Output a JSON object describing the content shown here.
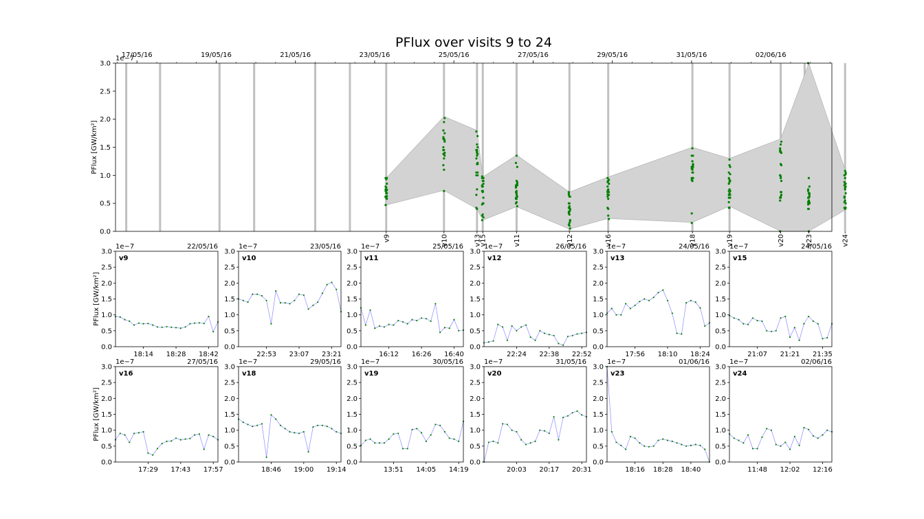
{
  "title": "PFlux over visits 9 to 24",
  "colors": {
    "points": "#008000",
    "line": "#8a8aff",
    "band": "#d3d3d3",
    "band_edge": "#a9a9a9",
    "visit_bar": "#c0c0c0"
  },
  "chart_data": [
    {
      "type": "scatter",
      "panel": "overview",
      "title": "PFlux over visits 9 to 24",
      "ylabel": "PFlux [GW/km²]",
      "y_scale_label": "1e−7",
      "ylim": [
        0,
        3.0
      ],
      "yticks": [
        "0.0",
        "0.5",
        "1.0",
        "1.5",
        "2.0",
        "2.5",
        "3.0"
      ],
      "xlim": [
        "2016-05-16T11:00",
        "2016-06-03T13:00"
      ],
      "xticks": [
        "17/05/16",
        "19/05/16",
        "21/05/16",
        "23/05/16",
        "25/05/16",
        "27/05/16",
        "29/05/16",
        "31/05/16",
        "02/06/16"
      ],
      "visit_bars": [
        "2016-05-16T17:30",
        "2016-05-17T14:00",
        "2016-05-19T02:00",
        "2016-05-19T23:00",
        "2016-05-21T12:00",
        "2016-05-22T09:00",
        "2016-05-23T07:00",
        "2016-05-24T18:00",
        "2016-05-25T14:00",
        "2016-05-25T17:30",
        "2016-05-26T14:00",
        "2016-05-27T22:00",
        "2016-05-28T21:30",
        "2016-05-31T00:30",
        "2016-05-31T23:00",
        "2016-06-02T06:00",
        "2016-06-02T20:30",
        "2016-06-02T23:00",
        "2016-06-03T21:00"
      ],
      "band_upper": [
        {
          "x": "2016-05-23T07:00",
          "y": 0.95
        },
        {
          "x": "2016-05-24T18:00",
          "y": 2.05
        },
        {
          "x": "2016-05-25T14:00",
          "y": 1.8
        },
        {
          "x": "2016-05-25T17:30",
          "y": 0.97
        },
        {
          "x": "2016-05-26T14:00",
          "y": 1.36
        },
        {
          "x": "2016-05-27T22:00",
          "y": 0.7
        },
        {
          "x": "2016-05-28T21:30",
          "y": 0.97
        },
        {
          "x": "2016-05-31T00:30",
          "y": 1.5
        },
        {
          "x": "2016-05-31T23:00",
          "y": 1.3
        },
        {
          "x": "2016-06-02T06:00",
          "y": 1.65
        },
        {
          "x": "2016-06-02T23:00",
          "y": 3.0
        },
        {
          "x": "2016-06-03T21:00",
          "y": 1.1
        }
      ],
      "band_lower": [
        {
          "x": "2016-05-23T07:00",
          "y": 0.47
        },
        {
          "x": "2016-05-24T18:00",
          "y": 0.73
        },
        {
          "x": "2016-05-25T14:00",
          "y": 0.4
        },
        {
          "x": "2016-05-25T17:30",
          "y": 0.2
        },
        {
          "x": "2016-05-26T14:00",
          "y": 0.44
        },
        {
          "x": "2016-05-27T22:00",
          "y": 0.04
        },
        {
          "x": "2016-05-28T21:30",
          "y": 0.23
        },
        {
          "x": "2016-05-31T00:30",
          "y": 0.16
        },
        {
          "x": "2016-05-31T23:00",
          "y": 0.45
        },
        {
          "x": "2016-06-02T06:00",
          "y": 0.0
        },
        {
          "x": "2016-06-02T23:00",
          "y": 0.0
        },
        {
          "x": "2016-06-03T21:00",
          "y": 0.38
        }
      ],
      "visit_labels": [
        {
          "label": "v9",
          "x": "2016-05-23T07:00"
        },
        {
          "label": "v10",
          "x": "2016-05-24T18:00"
        },
        {
          "label": "v13",
          "x": "2016-05-25T14:00"
        },
        {
          "label": "v15",
          "x": "2016-05-25T17:30"
        },
        {
          "label": "v11",
          "x": "2016-05-26T14:00"
        },
        {
          "label": "v12",
          "x": "2016-05-27T22:00"
        },
        {
          "label": "v16",
          "x": "2016-05-28T21:30"
        },
        {
          "label": "v18",
          "x": "2016-05-31T00:30"
        },
        {
          "label": "v19",
          "x": "2016-05-31T23:00"
        },
        {
          "label": "v20",
          "x": "2016-06-02T06:00"
        },
        {
          "label": "v23",
          "x": "2016-06-02T23:00"
        },
        {
          "label": "v24",
          "x": "2016-06-03T21:00"
        }
      ]
    },
    {
      "type": "line",
      "label": "v9",
      "date": "22/05/16",
      "x": [
        "18:02",
        "18:04",
        "18:06",
        "18:08",
        "18:10",
        "18:12",
        "18:14",
        "18:16",
        "18:18",
        "18:20",
        "18:22",
        "18:24",
        "18:26",
        "18:28",
        "18:30",
        "18:32",
        "18:34",
        "18:36",
        "18:38",
        "18:40",
        "18:42",
        "18:44",
        "18:46"
      ],
      "y": [
        0.95,
        0.93,
        0.85,
        0.8,
        0.68,
        0.74,
        0.72,
        0.73,
        0.68,
        0.62,
        0.61,
        0.63,
        0.61,
        0.6,
        0.58,
        0.62,
        0.72,
        0.74,
        0.75,
        0.73,
        0.95,
        0.47,
        0.78
      ],
      "ylim": [
        0,
        3.0
      ],
      "xticks": [
        "18:14",
        "18:28",
        "18:42"
      ],
      "ylabel": "PFlux [GW/km²]"
    },
    {
      "type": "line",
      "label": "v10",
      "date": "23/05/16",
      "x": [
        "22:41",
        "22:43",
        "22:45",
        "22:47",
        "22:49",
        "22:51",
        "22:53",
        "22:55",
        "22:57",
        "22:59",
        "23:01",
        "23:03",
        "23:05",
        "23:07",
        "23:09",
        "23:11",
        "23:13",
        "23:15",
        "23:17",
        "23:19",
        "23:21",
        "23:23",
        "23:25"
      ],
      "y": [
        1.5,
        1.45,
        1.4,
        1.65,
        1.65,
        1.6,
        1.45,
        0.72,
        1.75,
        1.38,
        1.38,
        1.35,
        1.45,
        1.65,
        1.62,
        1.18,
        1.3,
        1.4,
        1.68,
        1.95,
        2.02,
        1.8,
        1.1
      ],
      "ylim": [
        0,
        3.0
      ],
      "xticks": [
        "22:53",
        "23:07",
        "23:21"
      ],
      "ylabel": ""
    },
    {
      "type": "line",
      "label": "v11",
      "date": "25/05/16",
      "x": [
        "16:00",
        "16:02",
        "16:04",
        "16:06",
        "16:08",
        "16:10",
        "16:12",
        "16:14",
        "16:16",
        "16:18",
        "16:20",
        "16:22",
        "16:24",
        "16:26",
        "16:28",
        "16:30",
        "16:32",
        "16:34",
        "16:36",
        "16:38",
        "16:40",
        "16:42",
        "16:44"
      ],
      "y": [
        1.22,
        0.68,
        1.15,
        0.58,
        0.65,
        0.62,
        0.7,
        0.68,
        0.82,
        0.78,
        0.72,
        0.85,
        0.82,
        0.9,
        0.88,
        0.8,
        1.35,
        0.45,
        0.6,
        0.58,
        0.85,
        0.5,
        0.52
      ],
      "ylim": [
        0,
        3.0
      ],
      "xticks": [
        "16:12",
        "16:26",
        "16:40"
      ],
      "ylabel": ""
    },
    {
      "type": "line",
      "label": "v12",
      "date": "26/05/16",
      "x": [
        "22:10",
        "22:12",
        "22:14",
        "22:16",
        "22:18",
        "22:20",
        "22:22",
        "22:24",
        "22:26",
        "22:28",
        "22:30",
        "22:32",
        "22:34",
        "22:36",
        "22:38",
        "22:40",
        "22:42",
        "22:44",
        "22:46",
        "22:48",
        "22:50",
        "22:52",
        "22:54"
      ],
      "y": [
        0.12,
        0.15,
        0.18,
        0.7,
        0.62,
        0.2,
        0.65,
        0.5,
        0.62,
        0.68,
        0.3,
        0.2,
        0.5,
        0.42,
        0.38,
        0.35,
        0.1,
        0.05,
        0.32,
        0.35,
        0.4,
        0.42,
        0.45
      ],
      "ylim": [
        0,
        3.0
      ],
      "xticks": [
        "22:24",
        "22:38",
        "22:52"
      ],
      "ylabel": ""
    },
    {
      "type": "line",
      "label": "v13",
      "date": "24/05/16",
      "x": [
        "17:44",
        "17:46",
        "17:48",
        "17:50",
        "17:52",
        "17:54",
        "17:56",
        "17:58",
        "18:00",
        "18:02",
        "18:04",
        "18:06",
        "18:08",
        "18:10",
        "18:12",
        "18:14",
        "18:16",
        "18:18",
        "18:20",
        "18:22",
        "18:24",
        "18:26",
        "18:28"
      ],
      "y": [
        1.05,
        1.2,
        1.0,
        1.0,
        1.35,
        1.2,
        1.3,
        1.42,
        1.5,
        1.45,
        1.55,
        1.7,
        1.78,
        1.45,
        1.05,
        0.42,
        0.4,
        1.38,
        1.45,
        1.4,
        1.22,
        0.65,
        0.75
      ],
      "ylim": [
        0,
        3.0
      ],
      "xticks": [
        "17:56",
        "18:10",
        "18:24"
      ],
      "ylabel": ""
    },
    {
      "type": "line",
      "label": "v15",
      "date": "24/05/16",
      "x": [
        "20:55",
        "20:57",
        "20:59",
        "21:01",
        "21:03",
        "21:05",
        "21:07",
        "21:09",
        "21:11",
        "21:13",
        "21:15",
        "21:17",
        "21:19",
        "21:21",
        "21:23",
        "21:25",
        "21:27",
        "21:29",
        "21:31",
        "21:33",
        "21:35",
        "21:37",
        "21:39"
      ],
      "y": [
        0.98,
        0.9,
        0.85,
        0.72,
        0.7,
        0.9,
        0.82,
        0.8,
        0.5,
        0.48,
        0.5,
        0.9,
        0.95,
        0.3,
        0.6,
        0.2,
        0.72,
        0.95,
        0.8,
        0.72,
        0.25,
        0.28,
        0.72
      ],
      "ylim": [
        0,
        3.0
      ],
      "xticks": [
        "21:07",
        "21:21",
        "21:35"
      ],
      "ylabel": ""
    },
    {
      "type": "line",
      "label": "v16",
      "date": "27/05/16",
      "x": [
        "17:15",
        "17:17",
        "17:19",
        "17:21",
        "17:23",
        "17:25",
        "17:27",
        "17:29",
        "17:31",
        "17:33",
        "17:35",
        "17:37",
        "17:39",
        "17:41",
        "17:43",
        "17:45",
        "17:47",
        "17:49",
        "17:51",
        "17:53",
        "17:55",
        "17:57",
        "17:59"
      ],
      "y": [
        0.7,
        0.9,
        0.85,
        0.62,
        0.9,
        0.92,
        0.95,
        0.28,
        0.22,
        0.42,
        0.58,
        0.65,
        0.66,
        0.75,
        0.7,
        0.72,
        0.74,
        0.85,
        0.88,
        0.4,
        0.85,
        0.8,
        0.7
      ],
      "ylim": [
        0,
        3.0
      ],
      "xticks": [
        "17:29",
        "17:43",
        "17:57"
      ],
      "ylabel": "PFlux [GW/km²]"
    },
    {
      "type": "line",
      "label": "v18",
      "date": "29/05/16",
      "x": [
        "18:32",
        "18:34",
        "18:36",
        "18:38",
        "18:40",
        "18:42",
        "18:44",
        "18:46",
        "18:48",
        "18:50",
        "18:52",
        "18:54",
        "18:56",
        "18:58",
        "19:00",
        "19:02",
        "19:04",
        "19:06",
        "19:08",
        "19:10",
        "19:12",
        "19:14",
        "19:16"
      ],
      "y": [
        1.35,
        1.25,
        1.18,
        1.12,
        1.15,
        1.2,
        0.15,
        1.48,
        1.35,
        1.15,
        1.05,
        0.95,
        0.92,
        0.9,
        0.95,
        0.32,
        1.1,
        1.15,
        1.15,
        1.12,
        1.05,
        0.95,
        0.9
      ],
      "ylim": [
        0,
        3.0
      ],
      "xticks": [
        "18:46",
        "19:00",
        "19:14"
      ],
      "ylabel": ""
    },
    {
      "type": "line",
      "label": "v19",
      "date": "30/05/16",
      "x": [
        "13:37",
        "13:39",
        "13:41",
        "13:43",
        "13:45",
        "13:47",
        "13:49",
        "13:51",
        "13:53",
        "13:55",
        "13:57",
        "13:59",
        "14:01",
        "14:03",
        "14:05",
        "14:07",
        "14:09",
        "14:11",
        "14:13",
        "14:15",
        "14:17",
        "14:19",
        "14:21"
      ],
      "y": [
        0.52,
        0.68,
        0.72,
        0.6,
        0.6,
        0.6,
        0.72,
        0.88,
        0.9,
        0.42,
        0.42,
        1.02,
        1.05,
        0.92,
        0.65,
        0.85,
        1.18,
        1.15,
        0.95,
        0.75,
        0.72,
        0.65,
        1.28
      ],
      "ylim": [
        0,
        3.0
      ],
      "xticks": [
        "13:51",
        "14:05",
        "14:19"
      ],
      "ylabel": ""
    },
    {
      "type": "line",
      "label": "v20",
      "date": "31/05/16",
      "x": [
        "19:49",
        "19:51",
        "19:53",
        "19:55",
        "19:57",
        "19:59",
        "20:01",
        "20:03",
        "20:05",
        "20:07",
        "20:09",
        "20:11",
        "20:13",
        "20:15",
        "20:17",
        "20:19",
        "20:21",
        "20:23",
        "20:25",
        "20:27",
        "20:29",
        "20:31",
        "20:33"
      ],
      "y": [
        0.0,
        0.62,
        0.65,
        0.6,
        1.2,
        1.18,
        1.0,
        0.95,
        0.7,
        0.55,
        0.6,
        0.65,
        1.0,
        0.98,
        0.9,
        1.42,
        0.7,
        1.4,
        1.45,
        1.55,
        1.6,
        1.48,
        1.42
      ],
      "ylim": [
        0,
        3.0
      ],
      "xticks": [
        "20:03",
        "20:17",
        "20:31"
      ],
      "ylabel": ""
    },
    {
      "type": "line",
      "label": "v23",
      "date": "01/06/16",
      "x": [
        "18:04",
        "18:06",
        "18:08",
        "18:10",
        "18:12",
        "18:14",
        "18:16",
        "18:18",
        "18:20",
        "18:22",
        "18:24",
        "18:26",
        "18:28",
        "18:30",
        "18:32",
        "18:34",
        "18:36",
        "18:38",
        "18:40",
        "18:42",
        "18:44",
        "18:46",
        "18:48"
      ],
      "y": [
        3.0,
        0.95,
        0.62,
        0.52,
        0.4,
        0.8,
        0.75,
        0.6,
        0.5,
        0.48,
        0.5,
        0.68,
        0.72,
        0.68,
        0.65,
        0.6,
        0.55,
        0.5,
        0.52,
        0.55,
        0.52,
        0.4,
        0.0
      ],
      "ylim": [
        0,
        3.0
      ],
      "xticks": [
        "18:16",
        "18:28",
        "18:40"
      ],
      "ylabel": ""
    },
    {
      "type": "line",
      "label": "v24",
      "date": "02/06/16",
      "x": [
        "11:36",
        "11:38",
        "11:40",
        "11:42",
        "11:44",
        "11:46",
        "11:48",
        "11:50",
        "11:52",
        "11:54",
        "11:56",
        "11:58",
        "12:00",
        "12:02",
        "12:04",
        "12:06",
        "12:08",
        "12:10",
        "12:12",
        "12:14",
        "12:16",
        "12:18",
        "12:20"
      ],
      "y": [
        0.88,
        0.75,
        0.68,
        0.6,
        0.85,
        0.42,
        0.42,
        0.78,
        1.05,
        1.0,
        0.55,
        0.5,
        0.62,
        0.4,
        0.8,
        0.52,
        1.08,
        1.02,
        0.82,
        0.75,
        0.85,
        1.0,
        0.95
      ],
      "ylim": [
        0,
        3.0
      ],
      "xticks": [
        "11:48",
        "12:02",
        "12:16"
      ],
      "ylabel": ""
    }
  ]
}
